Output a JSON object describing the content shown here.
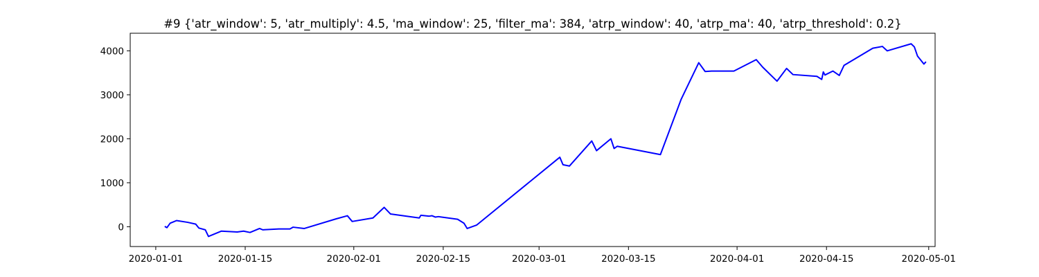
{
  "chart_data": {
    "type": "line",
    "title": "#9 {'atr_window': 5, 'atr_multiply': 4.5, 'ma_window': 25, 'filter_ma': 384, 'atrp_window': 40, 'atrp_ma': 40, 'atrp_threshold': 0.2}",
    "xlabel": "",
    "ylabel": "",
    "x_axis_type": "date",
    "xlim": [
      "2019-12-28",
      "2020-05-02"
    ],
    "ylim": [
      -450,
      4400
    ],
    "grid": false,
    "x_ticks": [
      {
        "date": "2020-01-01",
        "label": "2020-01-01"
      },
      {
        "date": "2020-01-15",
        "label": "2020-01-15"
      },
      {
        "date": "2020-02-01",
        "label": "2020-02-01"
      },
      {
        "date": "2020-02-15",
        "label": "2020-02-15"
      },
      {
        "date": "2020-03-01",
        "label": "2020-03-01"
      },
      {
        "date": "2020-03-15",
        "label": "2020-03-15"
      },
      {
        "date": "2020-04-01",
        "label": "2020-04-01"
      },
      {
        "date": "2020-04-15",
        "label": "2020-04-15"
      },
      {
        "date": "2020-05-01",
        "label": "2020-05-01"
      }
    ],
    "y_ticks": [
      {
        "value": 0,
        "label": "0"
      },
      {
        "value": 1000,
        "label": "1000"
      },
      {
        "value": 2000,
        "label": "2000"
      },
      {
        "value": 3000,
        "label": "3000"
      },
      {
        "value": 4000,
        "label": "4000"
      }
    ],
    "series": [
      {
        "color": "#0000ff",
        "points": [
          [
            "2020-01-02T12:00",
            0
          ],
          [
            "2020-01-02T18:00",
            -20
          ],
          [
            "2020-01-03T06:00",
            80
          ],
          [
            "2020-01-03T18:00",
            110
          ],
          [
            "2020-01-04T06:00",
            140
          ],
          [
            "2020-01-06T00:00",
            100
          ],
          [
            "2020-01-07T06:00",
            60
          ],
          [
            "2020-01-07T18:00",
            -30
          ],
          [
            "2020-01-08T18:00",
            -70
          ],
          [
            "2020-01-09T06:00",
            -220
          ],
          [
            "2020-01-11T06:00",
            -100
          ],
          [
            "2020-01-13T18:00",
            -120
          ],
          [
            "2020-01-14T06:00",
            -110
          ],
          [
            "2020-01-14T18:00",
            -100
          ],
          [
            "2020-01-15T18:00",
            -130
          ],
          [
            "2020-01-17T06:00",
            -40
          ],
          [
            "2020-01-17T18:00",
            -70
          ],
          [
            "2020-01-20T06:00",
            -50
          ],
          [
            "2020-01-22T00:00",
            -50
          ],
          [
            "2020-01-22T12:00",
            -10
          ],
          [
            "2020-01-24T06:00",
            -40
          ],
          [
            "2020-01-29T06:00",
            180
          ],
          [
            "2020-01-31T00:00",
            250
          ],
          [
            "2020-01-31T18:00",
            120
          ],
          [
            "2020-02-04T00:00",
            200
          ],
          [
            "2020-02-05T18:00",
            440
          ],
          [
            "2020-02-06T18:00",
            290
          ],
          [
            "2020-02-11T06:00",
            200
          ],
          [
            "2020-02-11T12:00",
            260
          ],
          [
            "2020-02-12T18:00",
            240
          ],
          [
            "2020-02-13T06:00",
            250
          ],
          [
            "2020-02-13T18:00",
            220
          ],
          [
            "2020-02-14T06:00",
            230
          ],
          [
            "2020-02-17T06:00",
            170
          ],
          [
            "2020-02-18T06:00",
            80
          ],
          [
            "2020-02-18T18:00",
            -40
          ],
          [
            "2020-02-20T06:00",
            40
          ],
          [
            "2020-03-04T06:00",
            1580
          ],
          [
            "2020-03-04T18:00",
            1410
          ],
          [
            "2020-03-05T18:00",
            1380
          ],
          [
            "2020-03-09T06:00",
            1950
          ],
          [
            "2020-03-10T00:00",
            1730
          ],
          [
            "2020-03-12T06:00",
            2000
          ],
          [
            "2020-03-12T18:00",
            1780
          ],
          [
            "2020-03-13T06:00",
            1830
          ],
          [
            "2020-03-20T00:00",
            1640
          ],
          [
            "2020-03-23T06:00",
            2900
          ],
          [
            "2020-03-26T00:00",
            3730
          ],
          [
            "2020-03-27T00:00",
            3530
          ],
          [
            "2020-03-28T00:00",
            3540
          ],
          [
            "2020-03-31T12:00",
            3540
          ],
          [
            "2020-04-04T00:00",
            3800
          ],
          [
            "2020-04-05T00:00",
            3630
          ],
          [
            "2020-04-07T06:00",
            3310
          ],
          [
            "2020-04-08T18:00",
            3600
          ],
          [
            "2020-04-09T18:00",
            3460
          ],
          [
            "2020-04-13T12:00",
            3420
          ],
          [
            "2020-04-14T06:00",
            3350
          ],
          [
            "2020-04-14T12:00",
            3520
          ],
          [
            "2020-04-14T18:00",
            3450
          ],
          [
            "2020-04-16T00:00",
            3540
          ],
          [
            "2020-04-17T00:00",
            3440
          ],
          [
            "2020-04-17T18:00",
            3670
          ],
          [
            "2020-04-22T06:00",
            4060
          ],
          [
            "2020-04-23T18:00",
            4100
          ],
          [
            "2020-04-24T12:00",
            4000
          ],
          [
            "2020-04-28T06:00",
            4160
          ],
          [
            "2020-04-28T18:00",
            4090
          ],
          [
            "2020-04-29T06:00",
            3880
          ],
          [
            "2020-04-30T06:00",
            3700
          ],
          [
            "2020-04-30T12:00",
            3740
          ]
        ]
      }
    ]
  }
}
